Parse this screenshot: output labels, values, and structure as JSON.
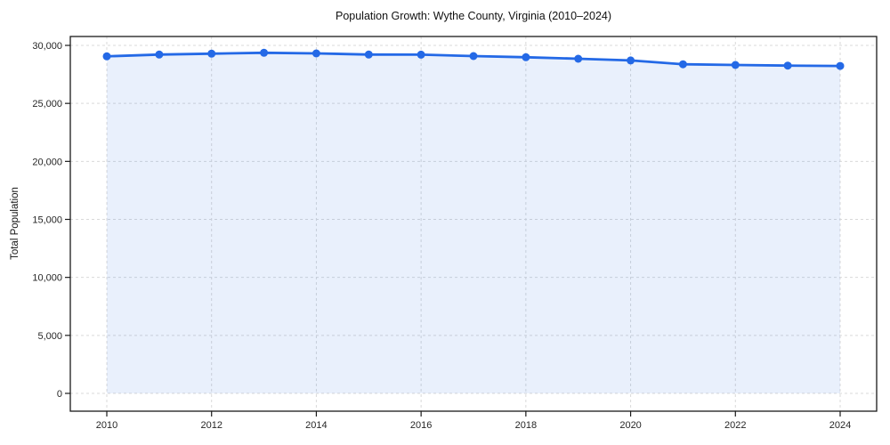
{
  "chart_data": {
    "type": "line",
    "title": "Population Growth: Wythe County, Virginia (2010–2024)",
    "xlabel": "",
    "ylabel": "Total Population",
    "x": [
      2010,
      2011,
      2012,
      2013,
      2014,
      2015,
      2016,
      2017,
      2018,
      2019,
      2020,
      2021,
      2022,
      2023,
      2024
    ],
    "series": [
      {
        "name": "Total Population",
        "values": [
          29060,
          29210,
          29290,
          29360,
          29310,
          29210,
          29200,
          29080,
          28980,
          28850,
          28700,
          28370,
          28310,
          28260,
          28230
        ]
      }
    ],
    "xticks": [
      2010,
      2012,
      2014,
      2016,
      2018,
      2020,
      2022,
      2024
    ],
    "xtick_labels": [
      "2010",
      "2012",
      "2014",
      "2016",
      "2018",
      "2020",
      "2022",
      "2024"
    ],
    "yticks": [
      0,
      5000,
      10000,
      15000,
      20000,
      25000,
      30000
    ],
    "ytick_labels": [
      "0",
      "5,000",
      "10,000",
      "15,000",
      "20,000",
      "25,000",
      "30,000"
    ],
    "ylim": [
      0,
      30000
    ],
    "grid": true,
    "grid_style": "dashed",
    "legend": false,
    "marker": "circle",
    "line_color": "#2469e6",
    "fill_color": "rgba(36,105,230,0.10)",
    "grid_color": "#d9d9d9",
    "spine_color": "#1a1a1a",
    "tick_label_color": "#262626",
    "background_color": "#ffffff"
  }
}
